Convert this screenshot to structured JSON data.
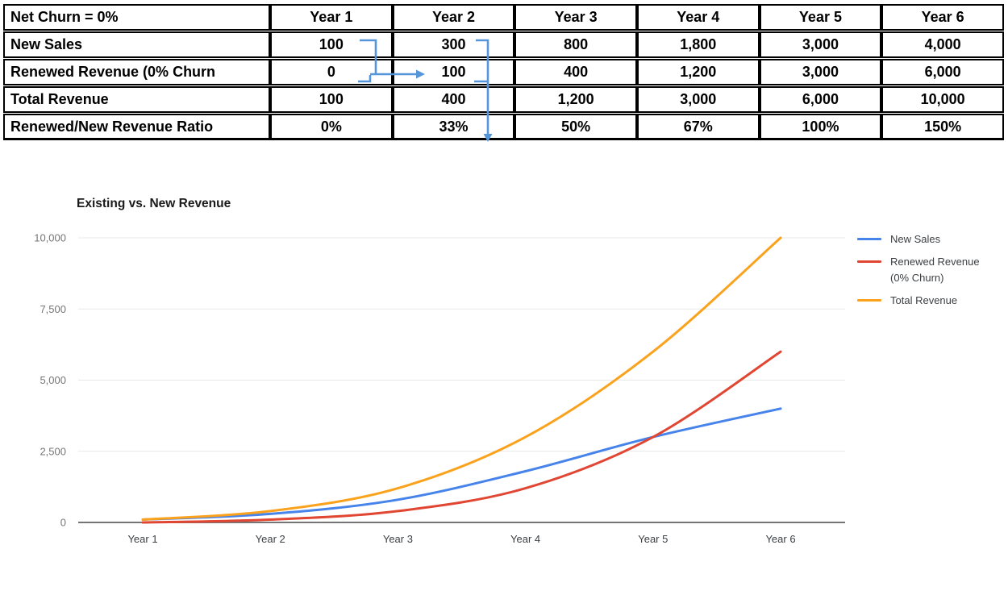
{
  "table": {
    "corner_label": "Net Churn = 0%",
    "year_headers": [
      "Year 1",
      "Year 2",
      "Year 3",
      "Year 4",
      "Year 5",
      "Year 6"
    ],
    "rows": [
      {
        "label": "New Sales",
        "values": [
          "100",
          "300",
          "800",
          "1,800",
          "3,000",
          "4,000"
        ]
      },
      {
        "label": "Renewed Revenue (0% Churn",
        "values": [
          "0",
          "100",
          "400",
          "1,200",
          "3,000",
          "6,000"
        ]
      },
      {
        "label": "Total Revenue",
        "values": [
          "100",
          "400",
          "1,200",
          "3,000",
          "6,000",
          "10,000"
        ]
      },
      {
        "label": "Renewed/New Revenue Ratio",
        "values": [
          "0%",
          "33%",
          "50%",
          "67%",
          "100%",
          "150%"
        ]
      }
    ],
    "corner_fill": "#F6B26B",
    "header_fill": "#EFEFEF",
    "arrow_color": "#5596DB",
    "flow_arrows": [
      {
        "from": "Year 1 New Sales + Year 1 Renewed Revenue",
        "to": "Year 2 Renewed Revenue (points right)"
      },
      {
        "from": "Year 2 New Sales + Year 2 Renewed Revenue",
        "to": "points down through Year 2 ratio row"
      }
    ]
  },
  "chart_data": {
    "type": "line",
    "title": "Existing vs. New Revenue",
    "categories": [
      "Year 1",
      "Year 2",
      "Year 3",
      "Year 4",
      "Year 5",
      "Year 6"
    ],
    "series": [
      {
        "name": "New Sales",
        "color": "#4683EA",
        "values": [
          100,
          300,
          800,
          1800,
          3000,
          4000
        ]
      },
      {
        "name": "Renewed Revenue (0% Churn)",
        "color": "#E04632",
        "values": [
          0,
          100,
          400,
          1200,
          3000,
          6000
        ]
      },
      {
        "name": "Total Revenue",
        "color": "#FBA21D",
        "values": [
          100,
          400,
          1200,
          3000,
          6000,
          10000
        ]
      }
    ],
    "ylim": [
      0,
      10000
    ],
    "yticks": [
      0,
      2500,
      5000,
      7500,
      10000
    ],
    "ytick_labels": [
      "0",
      "2,500",
      "5,000",
      "7,500",
      "10,000"
    ],
    "grid": "horizontal",
    "gridline_color": "#E8E8E8",
    "axis_line_color": "#757575",
    "legend_position": "right",
    "smooth": true
  }
}
